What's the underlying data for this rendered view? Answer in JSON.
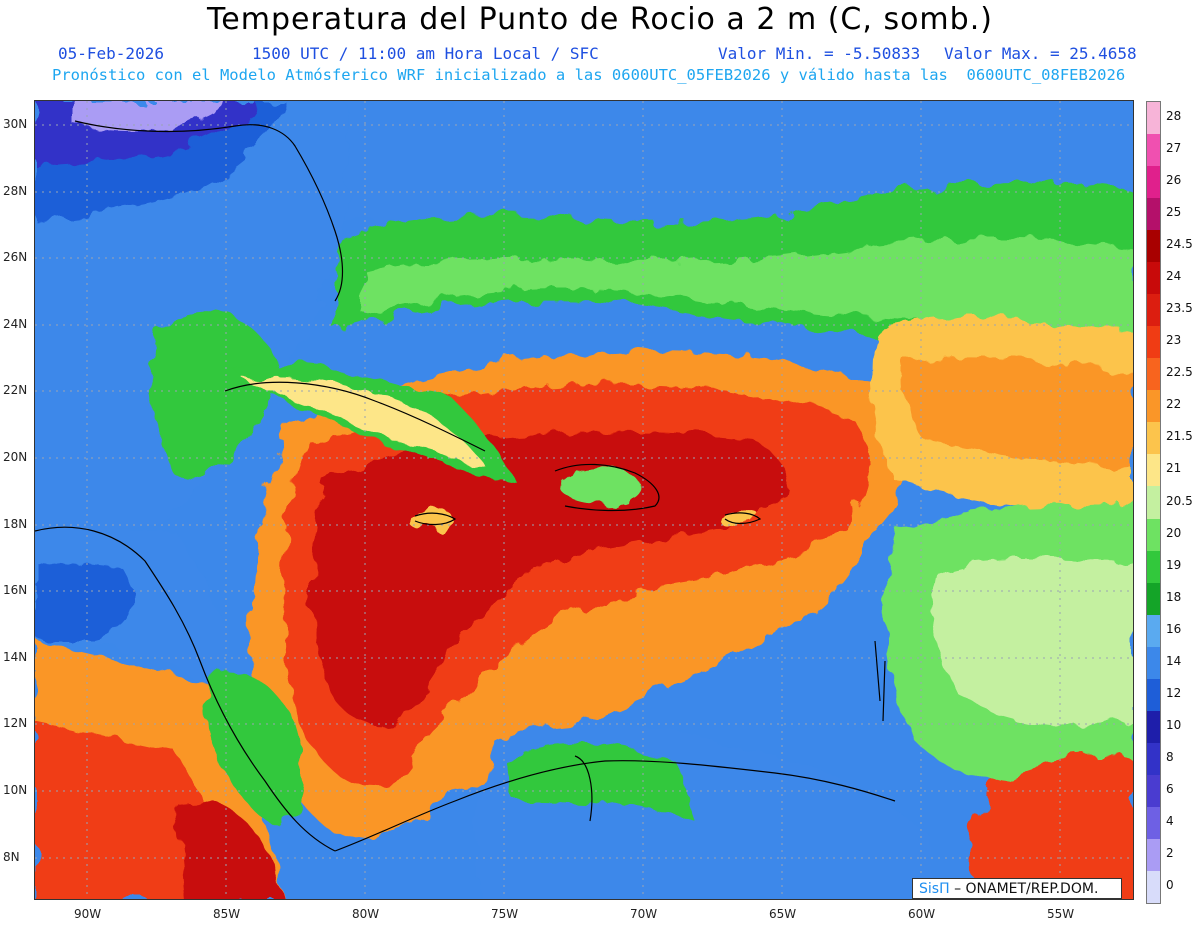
{
  "header": {
    "title": "Temperatura del Punto de Rocio a 2 m (C, somb.)",
    "date": "05-Feb-2026",
    "time": "1500 UTC / 11:00 am Hora Local / SFC",
    "min_label": "Valor Min. = -5.50833",
    "max_label": "Valor Max. = 25.4658",
    "forecast_line": "Pronóstico con el Modelo Atmósferico WRF inicializado a las 0600UTC_05FEB2026 y válido hasta las  0600UTC_08FEB2026"
  },
  "axes": {
    "lat_labels": [
      "30N",
      "28N",
      "26N",
      "24N",
      "22N",
      "20N",
      "18N",
      "16N",
      "14N",
      "12N",
      "10N",
      "8N"
    ],
    "lon_labels": [
      "90W",
      "85W",
      "80W",
      "75W",
      "70W",
      "65W",
      "60W",
      "55W"
    ]
  },
  "colorbar": {
    "labels": [
      "28",
      "27",
      "26",
      "25",
      "24.5",
      "24",
      "23.5",
      "23",
      "22.5",
      "22",
      "21.5",
      "21",
      "20.5",
      "20",
      "19",
      "18",
      "16",
      "14",
      "12",
      "10",
      "8",
      "6",
      "4",
      "2",
      "0"
    ],
    "colors": [
      "#f7b4d8",
      "#f050b0",
      "#e0208c",
      "#b4106a",
      "#a80000",
      "#c80a0a",
      "#dc1e10",
      "#f03c14",
      "#f8641e",
      "#fa9628",
      "#fcc44c",
      "#fde688",
      "#c4f0a0",
      "#6ee262",
      "#32c83c",
      "#14a428",
      "#5aaaf0",
      "#3c88ea",
      "#1e5ed8",
      "#1e1eaa",
      "#3232c8",
      "#4a3cd0",
      "#6e60e4",
      "#aa9cf4",
      "#d8dcfa"
    ]
  },
  "credit": {
    "brand": "SisΠ",
    "org": "– ONAMET/REP.DOM."
  }
}
